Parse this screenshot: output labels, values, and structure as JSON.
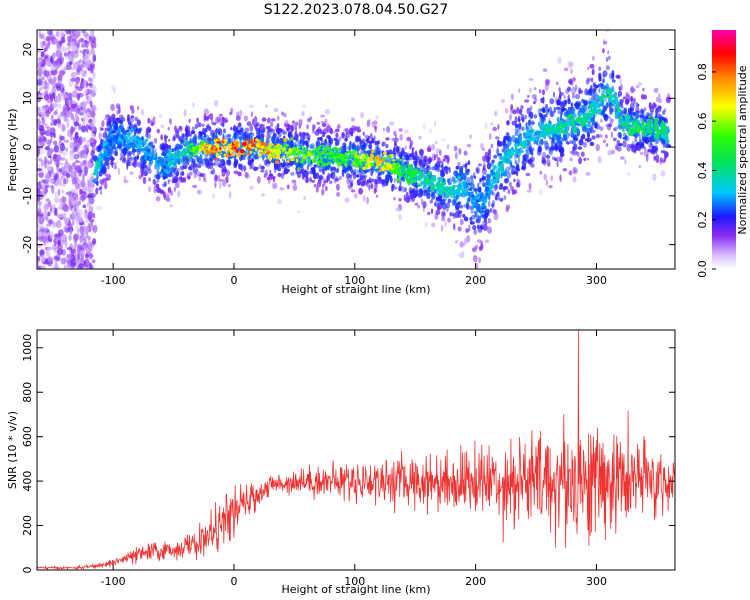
{
  "figure": {
    "title": "S122.2023.078.04.50.G27"
  },
  "chart_data": [
    {
      "type": "heatmap",
      "panel": "top",
      "xlabel": "Height of straight line (km)",
      "ylabel": "Frequency (Hz)",
      "xlim": [
        -163,
        365
      ],
      "ylim": [
        -25,
        24
      ],
      "xticks": [
        -100,
        0,
        100,
        200,
        300
      ],
      "yticks": [
        -20,
        -10,
        0,
        10,
        20
      ],
      "colorbar": {
        "label": "Normalized spectral amplitude",
        "range": [
          0.0,
          0.97
        ],
        "ticks": [
          0.0,
          0.2,
          0.4,
          0.6,
          0.8
        ]
      },
      "ridge": {
        "x": [
          -115,
          -100,
          -80,
          -60,
          -40,
          -20,
          0,
          20,
          40,
          60,
          80,
          100,
          120,
          140,
          160,
          180,
          190,
          200,
          205,
          215,
          230,
          250,
          270,
          290,
          300,
          310,
          315,
          320,
          340,
          360
        ],
        "frequency": [
          -5,
          2,
          1,
          -4,
          -1,
          0,
          0,
          0,
          -1,
          -1.5,
          -2,
          -2.5,
          -3,
          -5,
          -7,
          -9,
          -8,
          -11,
          -12,
          -6,
          -1,
          3,
          4,
          6,
          8,
          12,
          10,
          5,
          4,
          3
        ],
        "peak_amplitude": [
          0.4,
          0.3,
          0.35,
          0.3,
          0.45,
          0.85,
          0.9,
          0.85,
          0.75,
          0.6,
          0.55,
          0.6,
          0.8,
          0.5,
          0.45,
          0.4,
          0.35,
          0.3,
          0.3,
          0.35,
          0.4,
          0.35,
          0.45,
          0.45,
          0.4,
          0.5,
          0.35,
          0.45,
          0.5,
          0.45
        ]
      },
      "noise_region": {
        "x": [
          -163,
          -115
        ],
        "frequency": [
          -25,
          24
        ]
      }
    },
    {
      "type": "line",
      "panel": "bottom",
      "xlabel": "Height of straight line (km)",
      "ylabel": "SNR (10 * v/v)",
      "xlim": [
        -163,
        365
      ],
      "ylim": [
        0,
        1080
      ],
      "xticks": [
        -100,
        0,
        100,
        200,
        300
      ],
      "yticks": [
        0,
        200,
        400,
        600,
        800,
        1000
      ],
      "series": [
        {
          "color": "#ee3333",
          "envelope_x": [
            -163,
            -130,
            -110,
            -90,
            -70,
            -50,
            -30,
            -15,
            0,
            15,
            30,
            50,
            80,
            120,
            160,
            200,
            230,
            260,
            290,
            320,
            350,
            365
          ],
          "envelope_mean": [
            10,
            10,
            20,
            50,
            80,
            90,
            120,
            180,
            260,
            320,
            380,
            400,
            400,
            400,
            400,
            400,
            400,
            400,
            400,
            400,
            400,
            400
          ],
          "envelope_spread": [
            5,
            5,
            10,
            25,
            40,
            35,
            60,
            90,
            100,
            60,
            40,
            50,
            70,
            90,
            110,
            140,
            180,
            220,
            250,
            200,
            150,
            120
          ],
          "peak_value": 1080,
          "peak_x": 285
        }
      ]
    }
  ]
}
